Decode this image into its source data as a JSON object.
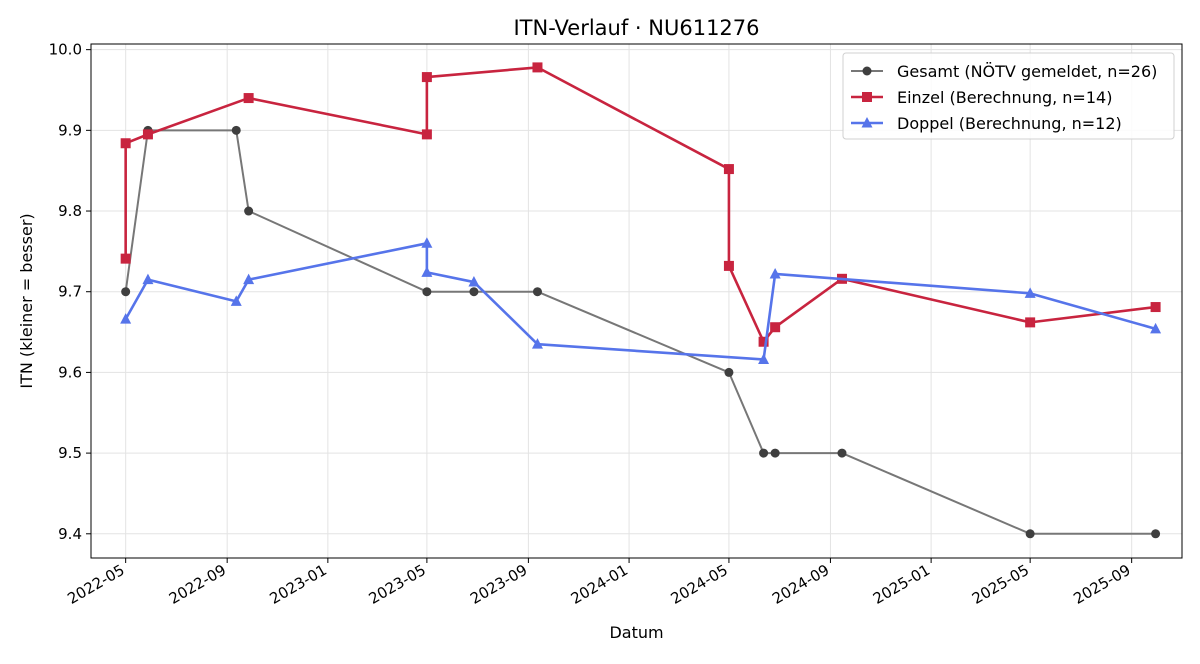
{
  "chart_data": {
    "type": "line",
    "title": "ITN-Verlauf · NU611276",
    "xlabel": "Datum",
    "ylabel": "ITN  (kleiner = besser)",
    "x_axis_type": "date",
    "xlim": [
      "2022-03-20",
      "2025-11-01"
    ],
    "ylim": [
      9.37,
      10.007
    ],
    "x_ticks": [
      "2022-05",
      "2022-09",
      "2023-01",
      "2023-05",
      "2023-09",
      "2024-01",
      "2024-05",
      "2024-09",
      "2025-01",
      "2025-05",
      "2025-09"
    ],
    "y_ticks": [
      "9.4",
      "9.5",
      "9.6",
      "9.7",
      "9.8",
      "9.9",
      "10.0"
    ],
    "grid": true,
    "legend_position": "top-right",
    "series": [
      {
        "name": "Gesamt (NÖTV gemeldet, n=26)",
        "color": "#777777",
        "marker_color": "#3f3f3f",
        "marker": "circle",
        "points": [
          {
            "x": "2022-05-01",
            "y": 9.7
          },
          {
            "x": "2022-05-28",
            "y": 9.9
          },
          {
            "x": "2022-09-12",
            "y": 9.9
          },
          {
            "x": "2022-09-27",
            "y": 9.8
          },
          {
            "x": "2023-05-01",
            "y": 9.7
          },
          {
            "x": "2023-06-27",
            "y": 9.7
          },
          {
            "x": "2023-09-12",
            "y": 9.7
          },
          {
            "x": "2024-05-01",
            "y": 9.6
          },
          {
            "x": "2024-06-12",
            "y": 9.5
          },
          {
            "x": "2024-06-26",
            "y": 9.5
          },
          {
            "x": "2024-09-15",
            "y": 9.5
          },
          {
            "x": "2025-05-01",
            "y": 9.4
          },
          {
            "x": "2025-09-30",
            "y": 9.4
          }
        ]
      },
      {
        "name": "Einzel (Berechnung, n=14)",
        "color": "#c8243f",
        "marker_color": "#c8243f",
        "marker": "square",
        "points": [
          {
            "x": "2022-05-01",
            "y": 9.741
          },
          {
            "x": "2022-05-01",
            "y": 9.884
          },
          {
            "x": "2022-05-28",
            "y": 9.895
          },
          {
            "x": "2022-09-27",
            "y": 9.94
          },
          {
            "x": "2023-05-01",
            "y": 9.895
          },
          {
            "x": "2023-05-01",
            "y": 9.966
          },
          {
            "x": "2023-09-12",
            "y": 9.978
          },
          {
            "x": "2024-05-01",
            "y": 9.852
          },
          {
            "x": "2024-05-01",
            "y": 9.732
          },
          {
            "x": "2024-06-12",
            "y": 9.638
          },
          {
            "x": "2024-06-26",
            "y": 9.656
          },
          {
            "x": "2024-09-15",
            "y": 9.716
          },
          {
            "x": "2025-05-01",
            "y": 9.662
          },
          {
            "x": "2025-09-30",
            "y": 9.681
          }
        ]
      },
      {
        "name": "Doppel (Berechnung, n=12)",
        "color": "#5674ea",
        "marker_color": "#5674ea",
        "marker": "triangle",
        "points": [
          {
            "x": "2022-05-01",
            "y": 9.666
          },
          {
            "x": "2022-05-28",
            "y": 9.715
          },
          {
            "x": "2022-09-12",
            "y": 9.688
          },
          {
            "x": "2022-09-27",
            "y": 9.715
          },
          {
            "x": "2023-05-01",
            "y": 9.76
          },
          {
            "x": "2023-05-01",
            "y": 9.724
          },
          {
            "x": "2023-06-27",
            "y": 9.712
          },
          {
            "x": "2023-09-12",
            "y": 9.635
          },
          {
            "x": "2024-06-12",
            "y": 9.616
          },
          {
            "x": "2024-06-26",
            "y": 9.722
          },
          {
            "x": "2025-05-01",
            "y": 9.698
          },
          {
            "x": "2025-09-30",
            "y": 9.654
          }
        ]
      }
    ]
  }
}
